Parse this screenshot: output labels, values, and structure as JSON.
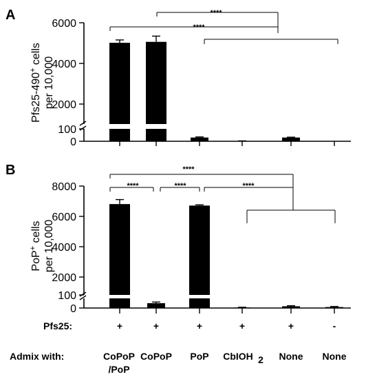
{
  "chart_data": [
    {
      "panel": "A",
      "type": "bar",
      "broken_axis": true,
      "ylabel_line1": "Pfs25-490",
      "ylabel_sup": "+",
      "ylabel_line1_rest": " cells",
      "ylabel_line2": "per 10,000",
      "upper_ticks": [
        "2000",
        "4000",
        "6000"
      ],
      "lower_ticks": [
        "0",
        "100"
      ],
      "upper_ylim": [
        700,
        6000
      ],
      "lower_ylim": [
        0,
        100
      ],
      "values": [
        4950,
        5000,
        30,
        2,
        30,
        0
      ],
      "errors": [
        150,
        300,
        5,
        1,
        3,
        0
      ],
      "significance": [
        "****",
        "****"
      ]
    },
    {
      "panel": "B",
      "type": "bar",
      "broken_axis": true,
      "ylabel_line1": "PoP",
      "ylabel_sup": "+",
      "ylabel_line1_rest": " cells",
      "ylabel_line2": "per 10,000",
      "upper_ticks": [
        "2000",
        "4000",
        "6000",
        "8000"
      ],
      "lower_ticks": [
        "0",
        "100"
      ],
      "upper_ylim": [
        750,
        8000
      ],
      "lower_ylim": [
        0,
        100
      ],
      "values": [
        6800,
        50,
        6700,
        5,
        18,
        10
      ],
      "errors": [
        300,
        12,
        50,
        3,
        6,
        6
      ],
      "significance": [
        "****",
        "****",
        "****",
        "****"
      ]
    }
  ],
  "categories": {
    "pfs25_label": "Pfs25:",
    "pfs25": [
      "+",
      "+",
      "+",
      "+",
      "+",
      "-"
    ],
    "admix_label": "Admix with:",
    "admix": [
      "CoPoP",
      "CoPoP",
      "PoP",
      "CbIOH",
      "None",
      "None"
    ],
    "admix_sub": [
      "/PoP",
      "",
      "",
      "2",
      "",
      ""
    ]
  }
}
